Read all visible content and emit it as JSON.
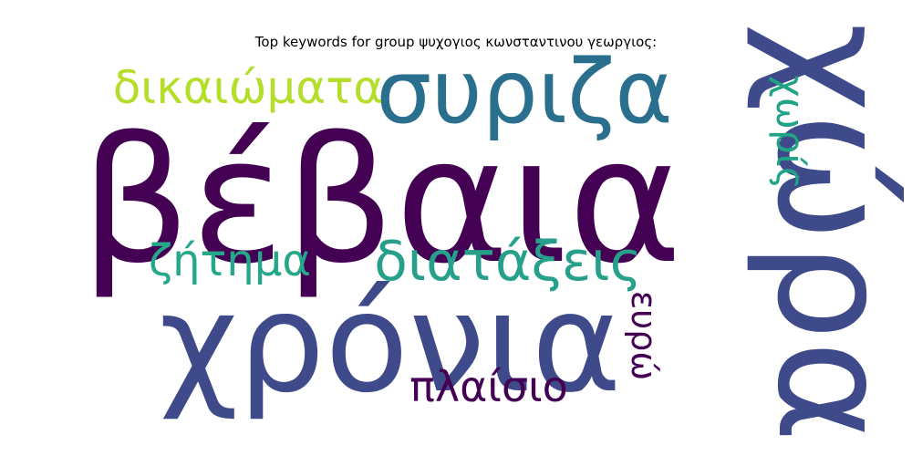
{
  "chart_data": {
    "type": "wordcloud",
    "title": "Top keywords for group ψυχογιος κωνσταντινου γεωργιος:",
    "words": [
      {
        "text": "βέβαια",
        "rank": 1,
        "color": "#440154"
      },
      {
        "text": "χρόνια",
        "rank": 2,
        "color": "#3e4a89"
      },
      {
        "text": "χώρα",
        "rank": 3,
        "color": "#3e4a89"
      },
      {
        "text": "συριζα",
        "rank": 4,
        "color": "#2a6f8e"
      },
      {
        "text": "διατάξεις",
        "rank": 5,
        "color": "#26a08a"
      },
      {
        "text": "δικαιώματα",
        "rank": 6,
        "color": "#b5de2b"
      },
      {
        "text": "ζήτημα",
        "rank": 7,
        "color": "#25a88a"
      },
      {
        "text": "πλαίσιο",
        "rank": 8,
        "color": "#440154"
      },
      {
        "text": "χωρίς",
        "rank": 9,
        "color": "#21a386"
      },
      {
        "text": "ευρώ",
        "rank": 10,
        "color": "#440154"
      }
    ]
  }
}
